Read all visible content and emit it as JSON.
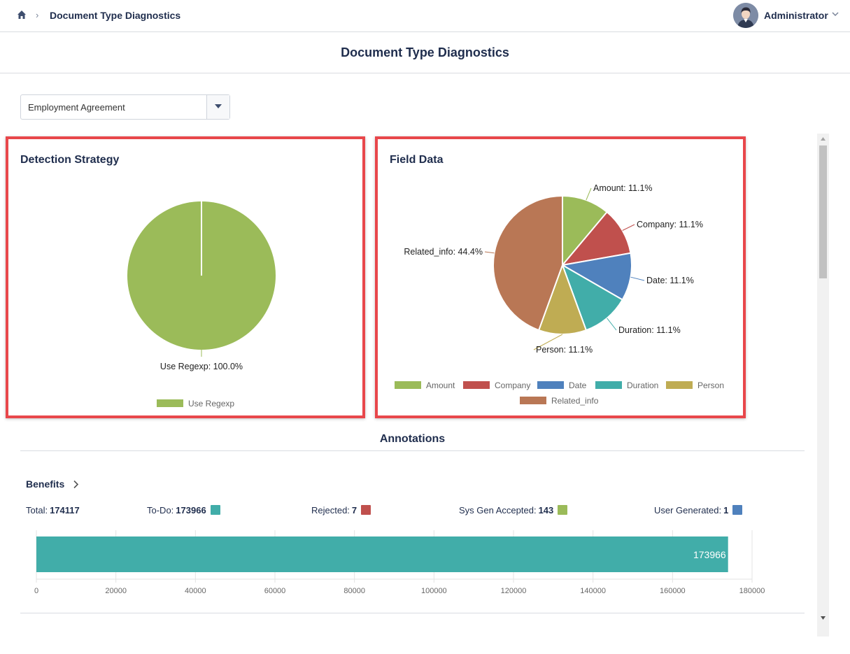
{
  "header": {
    "breadcrumb": "Document Type Diagnostics",
    "user_name": "Administrator"
  },
  "page": {
    "title": "Document Type Diagnostics"
  },
  "document_type_select": {
    "selected": "Employment Agreement"
  },
  "detection_panel": {
    "title": "Detection Strategy",
    "chart_data": {
      "type": "pie",
      "slices": [
        {
          "label": "Use Regexp",
          "value": 100.0,
          "color": "#9bbb59",
          "text": "Use Regexp: 100.0%"
        }
      ],
      "legend": [
        "Use Regexp"
      ]
    }
  },
  "field_panel": {
    "title": "Field Data",
    "chart_data": {
      "type": "pie",
      "slices": [
        {
          "label": "Amount",
          "value": 11.1,
          "color": "#9bbb59",
          "text": "Amount: 11.1%"
        },
        {
          "label": "Company",
          "value": 11.1,
          "color": "#c0504d",
          "text": "Company: 11.1%"
        },
        {
          "label": "Date",
          "value": 11.1,
          "color": "#4f81bd",
          "text": "Date: 11.1%"
        },
        {
          "label": "Duration",
          "value": 11.1,
          "color": "#41ada9",
          "text": "Duration: 11.1%"
        },
        {
          "label": "Person",
          "value": 11.1,
          "color": "#bfac53",
          "text": "Person: 11.1%"
        },
        {
          "label": "Related_info",
          "value": 44.4,
          "color": "#b97755",
          "text": "Related_info: 44.4%"
        }
      ]
    }
  },
  "annotations": {
    "title": "Annotations",
    "group": "Benefits",
    "stats": {
      "total_label": "Total:",
      "total_value": "174117",
      "todo_label": "To-Do:",
      "todo_value": "173966",
      "rejected_label": "Rejected:",
      "rejected_value": "7",
      "sysgen_label": "Sys Gen Accepted:",
      "sysgen_value": "143",
      "user_label": "User Generated:",
      "user_value": "1"
    },
    "colors": {
      "todo": "#41ada9",
      "rejected": "#c0504d",
      "sysgen": "#9bbb59",
      "user": "#4f81bd"
    },
    "chart_data": {
      "type": "bar",
      "orientation": "horizontal",
      "values": [
        173966
      ],
      "data_label": "173966",
      "xlim": [
        0,
        180000
      ],
      "ticks": [
        "0",
        "20000",
        "40000",
        "60000",
        "80000",
        "100000",
        "120000",
        "140000",
        "160000",
        "180000"
      ]
    }
  }
}
